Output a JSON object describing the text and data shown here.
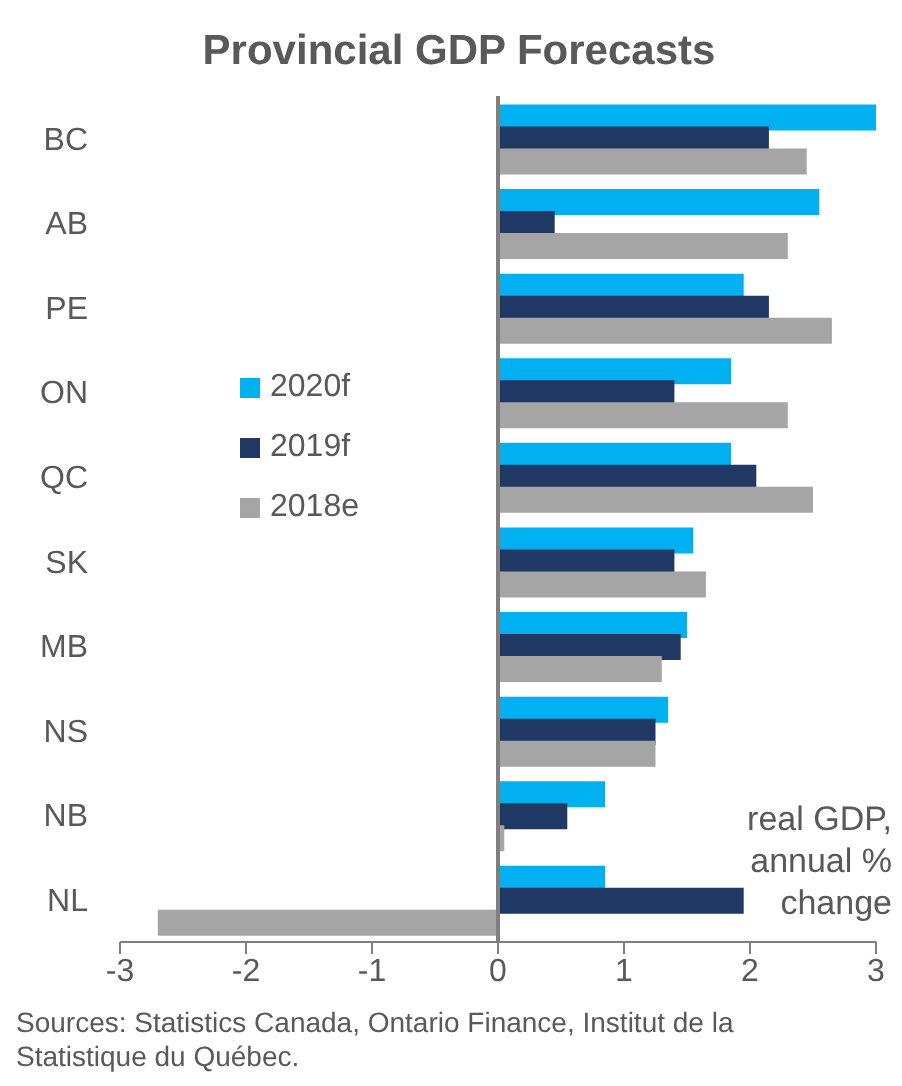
{
  "chart_data": {
    "type": "bar",
    "orientation": "horizontal",
    "title": "Provincial GDP Forecasts",
    "categories": [
      "BC",
      "AB",
      "PE",
      "ON",
      "QC",
      "SK",
      "MB",
      "NS",
      "NB",
      "NL"
    ],
    "series": [
      {
        "name": "2020f",
        "color": "#00b0f0",
        "values": [
          3.0,
          2.55,
          1.95,
          1.85,
          1.85,
          1.55,
          1.5,
          1.35,
          0.85,
          0.85
        ]
      },
      {
        "name": "2019f",
        "color": "#1f3864",
        "values": [
          2.15,
          0.45,
          2.15,
          1.4,
          2.05,
          1.4,
          1.45,
          1.25,
          0.55,
          1.95
        ]
      },
      {
        "name": "2018e",
        "color": "#a5a5a5",
        "values": [
          2.45,
          2.3,
          2.65,
          2.3,
          2.5,
          1.65,
          1.3,
          1.25,
          0.05,
          -2.7
        ]
      }
    ],
    "xlim": [
      -3,
      3
    ],
    "xticks": [
      -3,
      -2,
      -1,
      0,
      1,
      2,
      3
    ],
    "legend": "left",
    "annotations": [
      "real GDP, annual % change",
      "Sources: Statistics Canada, Ontario Finance, Institut de la Statistique du Québec."
    ]
  }
}
